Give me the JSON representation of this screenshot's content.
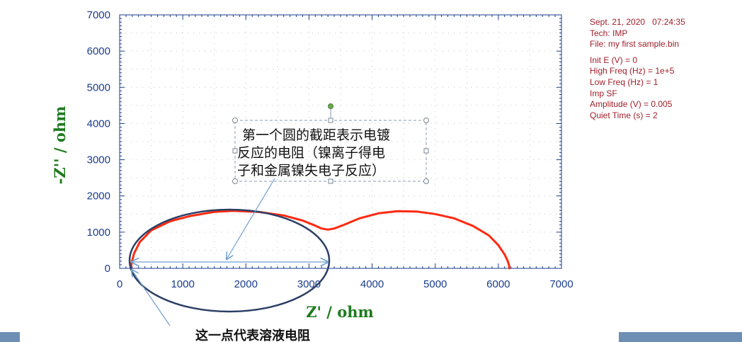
{
  "chart_data": {
    "type": "line",
    "xlabel": "Z' / ohm",
    "ylabel": "-Z'' / ohm",
    "xlim": [
      0,
      7000
    ],
    "ylim": [
      0,
      7000
    ],
    "x_ticks": [
      "0",
      "1000",
      "2000",
      "3000",
      "4000",
      "5000",
      "6000",
      "7000"
    ],
    "y_ticks": [
      "0",
      "1000",
      "2000",
      "3000",
      "4000",
      "5000",
      "6000",
      "7000"
    ],
    "grid": true,
    "series": [
      {
        "color": "#ff2a10",
        "x": [
          180,
          190,
          230,
          320,
          500,
          800,
          1100,
          1500,
          1800,
          2200,
          2600,
          2900,
          3100,
          3200,
          3300,
          3400,
          3550,
          3800,
          4100,
          4400,
          4700,
          5000,
          5300,
          5600,
          5850,
          6000,
          6100,
          6150,
          6170,
          6175
        ],
        "y": [
          0,
          150,
          420,
          730,
          1050,
          1300,
          1440,
          1560,
          1590,
          1560,
          1460,
          1320,
          1180,
          1100,
          1070,
          1100,
          1200,
          1380,
          1520,
          1580,
          1570,
          1500,
          1380,
          1170,
          910,
          640,
          380,
          200,
          80,
          0
        ]
      }
    ]
  },
  "info": {
    "lines": [
      "Sept. 21, 2020   07:24:35",
      "Tech: IMP",
      "File: my first sample.bin",
      "Init E (V) = 0",
      "High Freq (Hz) = 1e+5",
      "Low Freq (Hz) = 1",
      "Imp SF",
      "Amplitude (V) = 0.005",
      "Quiet Time (s) = 2"
    ]
  },
  "annotations": {
    "textbox_lines": [
      "第一个圆的截距表示电镀",
      "反应的电阻（镍离子得电",
      "子和金属镍失电子反应）"
    ],
    "bottom_note": "这一点代表溶液电阻"
  },
  "colors": {
    "axis": "#1a3c8c",
    "axis_label": "#1e7a1e",
    "grid": "#c0c4cc",
    "series": "#ff2a10",
    "info_text": "#a0202a",
    "ellipse": "#2b3f66",
    "arrow": "#6f9fd0",
    "handle": "#6aa84f"
  }
}
